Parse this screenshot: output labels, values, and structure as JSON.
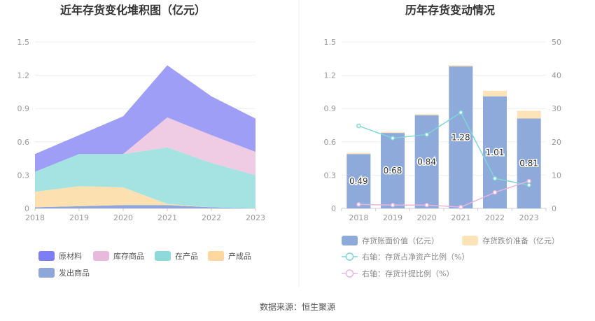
{
  "footer": {
    "source": "数据来源：恒生聚源"
  },
  "chart_data": [
    {
      "type": "area",
      "title": "近年存货变化堆积图（亿元）",
      "x": [
        "2018",
        "2019",
        "2020",
        "2021",
        "2022",
        "2023"
      ],
      "ylim": [
        0,
        1.5
      ],
      "yticks": [
        "0",
        "0.3",
        "0.6",
        "0.9",
        "1.2",
        "1.5"
      ],
      "grid": true,
      "legend_position": "bottom",
      "series": [
        {
          "name": "发出商品",
          "color": "#8fa5d9",
          "values": [
            0.01,
            0.02,
            0.03,
            0.03,
            0.01,
            0.0
          ]
        },
        {
          "name": "产成品",
          "color": "#fde0b0",
          "values": [
            0.14,
            0.18,
            0.16,
            0.01,
            0.0,
            0.0
          ]
        },
        {
          "name": "在产品",
          "color": "#a5e3e3",
          "values": [
            0.18,
            0.29,
            0.3,
            0.51,
            0.4,
            0.3
          ]
        },
        {
          "name": "库存商品",
          "color": "#f0cce4",
          "values": [
            0.0,
            0.0,
            0.0,
            0.27,
            0.25,
            0.21
          ]
        },
        {
          "name": "原材料",
          "color": "#9f9ef7",
          "values": [
            0.16,
            0.17,
            0.34,
            0.47,
            0.35,
            0.3
          ]
        }
      ],
      "legend_order": [
        "原材料",
        "库存商品",
        "在产品",
        "产成品",
        "发出商品"
      ],
      "legend_colors": {
        "原材料": "#7d7ef5",
        "库存商品": "#e9b9dd",
        "在产品": "#8ed9da",
        "产成品": "#fdd79f",
        "发出商品": "#8da7da"
      }
    },
    {
      "type": "bar",
      "title": "历年存货变动情况",
      "categories": [
        "2018",
        "2019",
        "2020",
        "2021",
        "2022",
        "2023"
      ],
      "ylim": [
        0,
        1.5
      ],
      "yticks": [
        "0",
        "0.3",
        "0.6",
        "0.9",
        "1.2",
        "1.5"
      ],
      "y2lim": [
        0,
        50
      ],
      "y2ticks": [
        "0",
        "10",
        "20",
        "30",
        "40",
        "50"
      ],
      "grid": true,
      "legend_position": "bottom",
      "bars": [
        {
          "name": "存货账面价值（亿元）",
          "color": "#8eaadb",
          "values": [
            0.49,
            0.68,
            0.84,
            1.28,
            1.01,
            0.81
          ],
          "labels": [
            "0.49",
            "0.68",
            "0.84",
            "1.28",
            "1.01",
            "0.81"
          ]
        },
        {
          "name": "存货跌价准备（亿元）",
          "color": "#fde3b8",
          "values": [
            0.01,
            0.01,
            0.01,
            0.01,
            0.05,
            0.07
          ]
        }
      ],
      "lines": [
        {
          "name": "右轴：存货占净资产比例（%）",
          "color": "#7fd6d6",
          "axis": "right",
          "values": [
            24.8,
            21.1,
            22.2,
            28.8,
            9.0,
            7.0
          ]
        },
        {
          "name": "右轴：存货计提比例（%）",
          "color": "#e6b7dc",
          "axis": "right",
          "values": [
            1.2,
            1.0,
            1.0,
            0.4,
            4.8,
            8.2
          ]
        }
      ]
    }
  ]
}
